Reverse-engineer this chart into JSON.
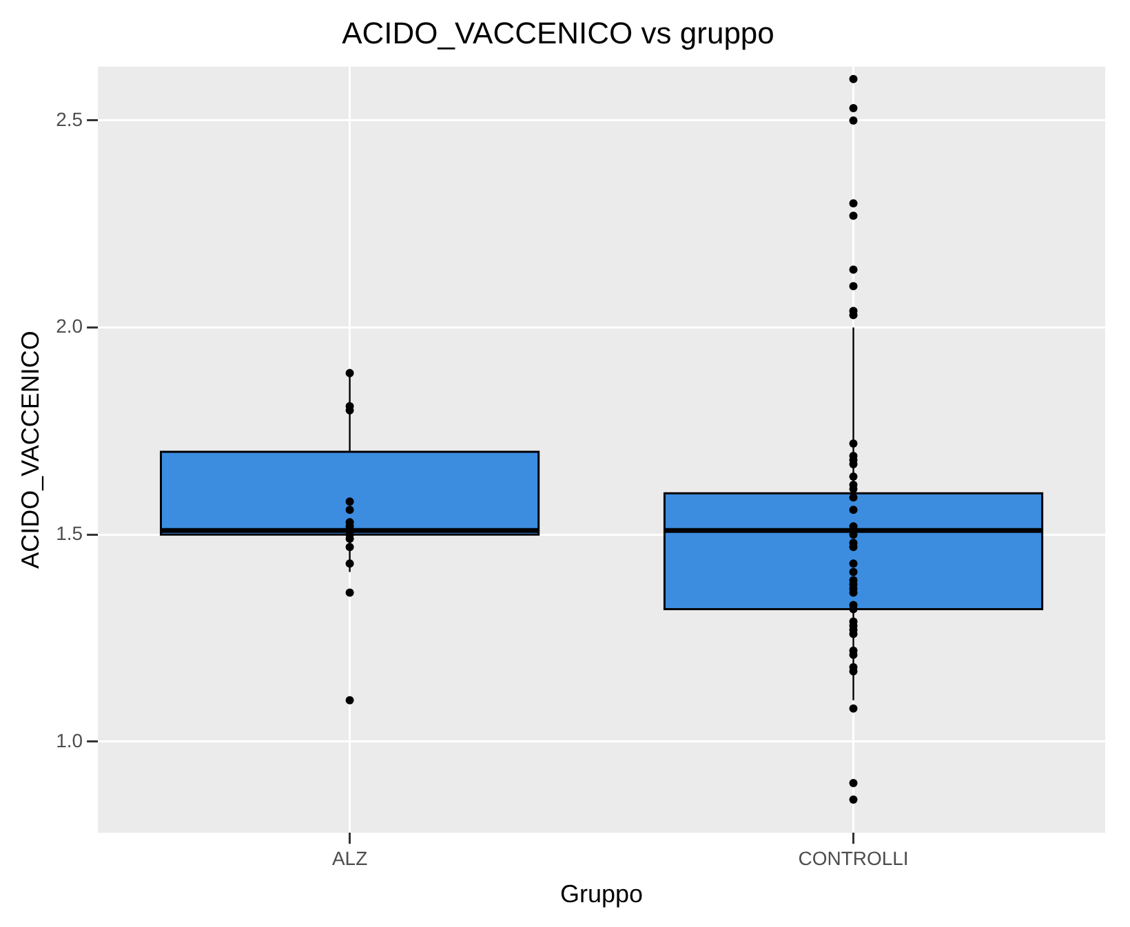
{
  "chart_data": {
    "type": "box",
    "title": "ACIDO_VACCENICO vs gruppo",
    "xlabel": "Gruppo",
    "ylabel": "ACIDO_VACCENICO",
    "categories": [
      "ALZ",
      "CONTROLLI"
    ],
    "boxes": [
      {
        "low": 1.41,
        "q1": 1.5,
        "median": 1.51,
        "q3": 1.7,
        "high": 1.9,
        "outliers": [
          1.1
        ]
      },
      {
        "low": 1.1,
        "q1": 1.32,
        "median": 1.51,
        "q3": 1.6,
        "high": 2.0,
        "outliers": [
          2.6,
          2.5,
          2.3,
          2.1,
          0.9
        ]
      }
    ],
    "color": "#3c8de0",
    "series": [
      {
        "type": "scatter",
        "color": "#000000",
        "x": [
          "ALZ",
          "ALZ",
          "ALZ",
          "ALZ",
          "ALZ",
          "ALZ",
          "ALZ",
          "ALZ",
          "ALZ",
          "ALZ",
          "ALZ",
          "ALZ",
          "CONTROLLI",
          "CONTROLLI",
          "CONTROLLI",
          "CONTROLLI",
          "CONTROLLI",
          "CONTROLLI",
          "CONTROLLI",
          "CONTROLLI",
          "CONTROLLI",
          "CONTROLLI",
          "CONTROLLI",
          "CONTROLLI",
          "CONTROLLI",
          "CONTROLLI",
          "CONTROLLI",
          "CONTROLLI",
          "CONTROLLI",
          "CONTROLLI",
          "CONTROLLI",
          "CONTROLLI",
          "CONTROLLI",
          "CONTROLLI",
          "CONTROLLI",
          "CONTROLLI",
          "CONTROLLI",
          "CONTROLLI",
          "CONTROLLI",
          "CONTROLLI",
          "CONTROLLI",
          "CONTROLLI",
          "CONTROLLI",
          "CONTROLLI",
          "CONTROLLI",
          "CONTROLLI",
          "CONTROLLI",
          "CONTROLLI"
        ],
        "values": [
          1.89,
          1.81,
          1.8,
          1.58,
          1.56,
          1.53,
          1.52,
          1.5,
          1.49,
          1.47,
          1.43,
          1.36,
          2.53,
          2.27,
          2.14,
          2.04,
          2.03,
          1.72,
          1.69,
          1.68,
          1.67,
          1.64,
          1.62,
          1.61,
          1.59,
          1.56,
          1.52,
          1.5,
          1.48,
          1.47,
          1.43,
          1.41,
          1.39,
          1.38,
          1.37,
          1.36,
          1.33,
          1.32,
          1.29,
          1.28,
          1.27,
          1.26,
          1.22,
          1.21,
          1.18,
          1.17,
          1.08,
          0.86
        ]
      }
    ],
    "ylim": [
      0.78,
      2.63
    ],
    "yticks": [
      {
        "value": 1,
        "label": "1.0"
      },
      {
        "value": 1.5,
        "label": "1.5"
      },
      {
        "value": 2,
        "label": "2.0"
      },
      {
        "value": 2.5,
        "label": "2.5"
      }
    ],
    "grid": true,
    "legend": false
  }
}
